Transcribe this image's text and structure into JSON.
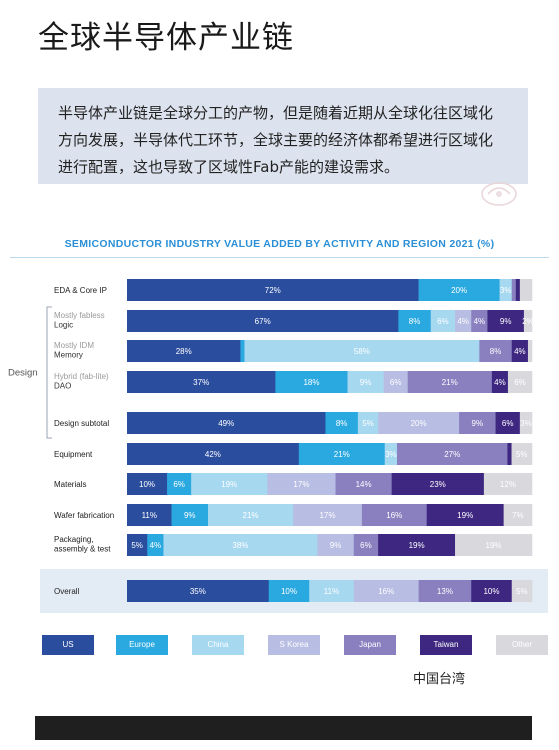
{
  "title": "全球半导体产业链",
  "intro_lines": [
    "半导体产业链是全球分工的产物，但是随着近期从全球化往区域化",
    "方向发展，半导体代工环节，全球主要的经济体都希望进行区域化",
    "进行配置，这也导致了区域性Fab产能的建设需求。"
  ],
  "footnote": "中国台湾",
  "colors": {
    "US": "#2a4d9e",
    "Europe": "#2aa8e0",
    "China": "#a6d8f0",
    "S Korea": "#b8bde3",
    "Japan": "#8a7fbf",
    "Taiwan": "#3d2780",
    "Other": "#d9d9dd"
  },
  "chart_data": {
    "type": "bar",
    "stacked": true,
    "orientation": "horizontal",
    "title": "SEMICONDUCTOR INDUSTRY VALUE ADDED BY ACTIVITY AND REGION 2021 (%)",
    "group_label": "Design",
    "series_names": [
      "US",
      "Europe",
      "China",
      "S Korea",
      "Japan",
      "Taiwan",
      "Other"
    ],
    "rows": [
      {
        "label": [
          "EDA & Core IP"
        ],
        "values": [
          72,
          20,
          3,
          0,
          1,
          1,
          3
        ],
        "shown": [
          "72%",
          "20%",
          "3%",
          "",
          "",
          "",
          ""
        ],
        "sub": false
      },
      {
        "label": [
          "Mostly fabless",
          "Logic"
        ],
        "values": [
          67,
          8,
          6,
          4,
          4,
          9,
          2
        ],
        "shown": [
          "67%",
          "8%",
          "6%",
          "4%",
          "4%",
          "9%",
          "2%"
        ],
        "sub": true
      },
      {
        "label": [
          "Mostly IDM",
          "Memory"
        ],
        "values": [
          28,
          1,
          58,
          0,
          8,
          4,
          1
        ],
        "shown": [
          "28%",
          "",
          "58%",
          "",
          "8%",
          "4%",
          ""
        ],
        "sub": true
      },
      {
        "label": [
          "Hybrid (fab-lite)",
          "DAO"
        ],
        "values": [
          37,
          18,
          9,
          6,
          21,
          4,
          6
        ],
        "shown": [
          "37%",
          "18%",
          "9%",
          "6%",
          "21%",
          "4%",
          "6%"
        ],
        "sub": true
      },
      {
        "label": [
          "Design subtotal"
        ],
        "values": [
          49,
          8,
          5,
          20,
          9,
          6,
          3
        ],
        "shown": [
          "49%",
          "8%",
          "5%",
          "20%",
          "9%",
          "6%",
          "3%"
        ],
        "sub": false
      },
      {
        "label": [
          "Equipment"
        ],
        "values": [
          42,
          21,
          3,
          0,
          27,
          1,
          5
        ],
        "shown": [
          "42%",
          "21%",
          "3%",
          "",
          "27%",
          "",
          "5%"
        ],
        "sub": false
      },
      {
        "label": [
          "Materials"
        ],
        "values": [
          10,
          6,
          19,
          17,
          14,
          23,
          12
        ],
        "shown": [
          "10%",
          "6%",
          "19%",
          "17%",
          "14%",
          "23%",
          "12%"
        ],
        "sub": false
      },
      {
        "label": [
          "Wafer fabrication"
        ],
        "values": [
          11,
          9,
          21,
          17,
          16,
          19,
          7
        ],
        "shown": [
          "11%",
          "9%",
          "21%",
          "17%",
          "16%",
          "19%",
          "7%"
        ],
        "sub": false
      },
      {
        "label": [
          "Packaging,",
          "assembly & test"
        ],
        "values": [
          5,
          4,
          38,
          9,
          6,
          19,
          19
        ],
        "shown": [
          "5%",
          "4%",
          "38%",
          "9%",
          "6%",
          "19%",
          "19%"
        ],
        "sub": false
      },
      {
        "label": [
          "Overall"
        ],
        "values": [
          35,
          10,
          11,
          16,
          13,
          10,
          5
        ],
        "shown": [
          "35%",
          "10%",
          "11%",
          "16%",
          "13%",
          "10%",
          "5%"
        ],
        "sub": false,
        "highlight": true
      }
    ]
  }
}
